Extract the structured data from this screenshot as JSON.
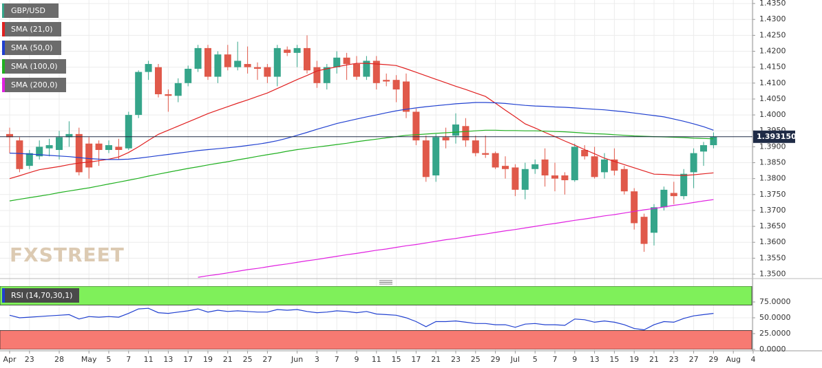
{
  "chart_data": {
    "type": "candlestick",
    "symbol": "GBP/USD",
    "watermark": "FXSTREET",
    "up_color": "#35a58a",
    "down_color": "#e0594a",
    "grid": true,
    "categories": [
      "Apr",
      null,
      "23",
      null,
      null,
      "28",
      null,
      null,
      "May",
      null,
      "5",
      null,
      "7",
      null,
      "11",
      null,
      "13",
      null,
      "17",
      null,
      "19",
      null,
      "21",
      null,
      "25",
      null,
      "27",
      null,
      null,
      "Jun",
      null,
      "3",
      null,
      "7",
      null,
      "9",
      null,
      "11",
      null,
      "15",
      null,
      "17",
      null,
      "21",
      null,
      "23",
      null,
      "25",
      null,
      "29",
      null,
      "Jul",
      null,
      "5",
      null,
      "7",
      null,
      "9",
      null,
      "13",
      null,
      "15",
      null,
      "19",
      null,
      "21",
      null,
      "23",
      null,
      "27",
      null,
      "29",
      null,
      "Aug",
      null,
      "4"
    ],
    "open": [
      1.394,
      1.392,
      1.384,
      1.387,
      1.3895,
      1.389,
      1.393,
      1.394,
      1.391,
      1.391,
      1.389,
      1.39,
      1.3895,
      1.4,
      1.4135,
      1.415,
      1.4065,
      1.406,
      1.41,
      1.4145,
      1.421,
      1.412,
      1.419,
      1.415,
      1.416,
      1.415,
      1.415,
      1.412,
      1.4205,
      1.4195,
      1.421,
      1.415,
      1.41,
      1.415,
      1.418,
      1.416,
      1.412,
      1.417,
      1.411,
      1.411,
      1.4105,
      1.401,
      1.392,
      1.381,
      1.393,
      1.3935,
      1.3965,
      1.392,
      1.388,
      1.388,
      1.384,
      1.3835,
      1.3765,
      1.383,
      1.386,
      1.381,
      1.381,
      1.3795,
      1.389,
      1.387,
      1.382,
      1.386,
      1.383,
      1.376,
      1.368,
      1.363,
      1.371,
      1.3755,
      1.3745,
      1.382,
      1.3885,
      1.3905,
      null,
      null,
      null,
      null
    ],
    "high": [
      1.396,
      1.393,
      1.389,
      1.392,
      1.3925,
      1.395,
      1.398,
      1.396,
      1.393,
      1.392,
      1.392,
      1.3925,
      1.401,
      1.414,
      1.417,
      1.416,
      1.408,
      1.4115,
      1.4155,
      1.422,
      1.422,
      1.42,
      1.422,
      1.423,
      1.4215,
      1.4165,
      1.416,
      1.422,
      1.4215,
      1.422,
      1.425,
      1.417,
      1.416,
      1.42,
      1.4195,
      1.4185,
      1.4185,
      1.4185,
      1.413,
      1.4125,
      1.413,
      1.402,
      1.3935,
      1.394,
      1.396,
      1.4005,
      1.399,
      1.3935,
      1.3935,
      1.3885,
      1.387,
      1.3845,
      1.385,
      1.386,
      1.3895,
      1.385,
      1.382,
      1.391,
      1.3905,
      1.39,
      1.388,
      1.3895,
      1.384,
      1.377,
      1.369,
      1.372,
      1.3775,
      1.379,
      1.383,
      1.3895,
      1.3915,
      1.3945,
      null,
      null,
      null,
      null
    ],
    "low": [
      1.388,
      1.382,
      1.383,
      1.386,
      1.387,
      1.386,
      1.39,
      1.381,
      1.38,
      1.384,
      1.388,
      1.386,
      1.389,
      1.399,
      1.411,
      1.4055,
      1.401,
      1.404,
      1.409,
      1.4135,
      1.411,
      1.41,
      1.414,
      1.414,
      1.413,
      1.411,
      1.41,
      1.409,
      1.4185,
      1.415,
      1.413,
      1.4085,
      1.408,
      1.413,
      1.411,
      1.411,
      1.411,
      1.408,
      1.409,
      1.404,
      1.399,
      1.3905,
      1.379,
      1.379,
      1.3895,
      1.391,
      1.39,
      1.387,
      1.3865,
      1.383,
      1.38,
      1.3745,
      1.3735,
      1.3815,
      1.3775,
      1.376,
      1.375,
      1.379,
      1.386,
      1.38,
      1.38,
      1.381,
      1.375,
      1.364,
      1.357,
      1.359,
      1.37,
      1.372,
      1.3735,
      1.377,
      1.384,
      1.3895,
      null,
      null,
      null,
      null
    ],
    "close": [
      1.393,
      1.383,
      1.388,
      1.39,
      1.3905,
      1.393,
      1.394,
      1.382,
      1.3835,
      1.389,
      1.3905,
      1.389,
      1.4,
      1.4135,
      1.416,
      1.4065,
      1.406,
      1.41,
      1.4145,
      1.421,
      1.412,
      1.419,
      1.415,
      1.417,
      1.415,
      1.4145,
      1.412,
      1.421,
      1.4195,
      1.421,
      1.414,
      1.41,
      1.415,
      1.418,
      1.416,
      1.412,
      1.417,
      1.41,
      1.4105,
      1.408,
      1.401,
      1.392,
      1.3805,
      1.393,
      1.392,
      1.397,
      1.392,
      1.388,
      1.3875,
      1.3835,
      1.383,
      1.3765,
      1.383,
      1.3845,
      1.381,
      1.38,
      1.3795,
      1.39,
      1.387,
      1.3805,
      1.386,
      1.3825,
      1.376,
      1.366,
      1.3595,
      1.371,
      1.3765,
      1.3745,
      1.3815,
      1.388,
      1.3905,
      1.3931,
      null,
      null,
      null,
      null
    ],
    "series": [
      {
        "name": "SMA (21,0)",
        "color": "#e02020",
        "values": [
          1.38,
          1.3809,
          1.3819,
          1.3828,
          1.3833,
          1.3838,
          1.3844,
          1.3849,
          1.3852,
          1.3856,
          1.3861,
          1.3868,
          1.3882,
          1.39,
          1.392,
          1.3939,
          1.3952,
          1.3965,
          1.3978,
          1.3991,
          1.4004,
          1.4015,
          1.4026,
          1.4037,
          1.4047,
          1.4058,
          1.4069,
          1.4083,
          1.4097,
          1.4111,
          1.4124,
          1.4138,
          1.4145,
          1.4151,
          1.4157,
          1.4162,
          1.4162,
          1.416,
          1.4158,
          1.4155,
          1.4145,
          1.4134,
          1.4123,
          1.4112,
          1.4101,
          1.409,
          1.408,
          1.4069,
          1.4058,
          1.4037,
          1.4015,
          1.3994,
          1.3972,
          1.3959,
          1.3945,
          1.3932,
          1.3918,
          1.3905,
          1.3891,
          1.3878,
          1.3864,
          1.3854,
          1.3844,
          1.3834,
          1.3824,
          1.3814,
          1.3813,
          1.3811,
          1.381,
          1.3812,
          1.3815,
          1.3818,
          null,
          null,
          null,
          null
        ]
      },
      {
        "name": "SMA (50,0)",
        "color": "#2040d0",
        "values": [
          1.388,
          1.3879,
          1.3877,
          1.3875,
          1.3873,
          1.3871,
          1.3869,
          1.3866,
          1.3863,
          1.3861,
          1.386,
          1.386,
          1.3861,
          1.3864,
          1.3868,
          1.3872,
          1.3876,
          1.388,
          1.3884,
          1.3888,
          1.3891,
          1.3894,
          1.3897,
          1.39,
          1.3904,
          1.3908,
          1.3913,
          1.3919,
          1.3927,
          1.3936,
          1.3945,
          1.3955,
          1.3964,
          1.3973,
          1.398,
          1.3987,
          1.3994,
          1.4,
          1.4007,
          1.4013,
          1.4018,
          1.4022,
          1.4026,
          1.4029,
          1.4032,
          1.4035,
          1.4037,
          1.4039,
          1.4039,
          1.4038,
          1.4036,
          1.4033,
          1.403,
          1.4028,
          1.4027,
          1.4025,
          1.4024,
          1.4022,
          1.402,
          1.4018,
          1.4016,
          1.4013,
          1.401,
          1.4006,
          1.4002,
          1.3998,
          1.3994,
          1.3987,
          1.398,
          1.3972,
          1.3963,
          1.3952,
          null,
          null,
          null,
          null
        ]
      },
      {
        "name": "SMA (100,0)",
        "color": "#20b020",
        "values": [
          1.373,
          1.3735,
          1.374,
          1.3745,
          1.375,
          1.3756,
          1.3761,
          1.3766,
          1.3771,
          1.3777,
          1.3783,
          1.3789,
          1.3795,
          1.3801,
          1.3808,
          1.3814,
          1.382,
          1.3826,
          1.3832,
          1.3837,
          1.3843,
          1.3848,
          1.3853,
          1.3859,
          1.3864,
          1.387,
          1.3875,
          1.388,
          1.3886,
          1.3891,
          1.3895,
          1.3899,
          1.3903,
          1.3907,
          1.3911,
          1.3916,
          1.392,
          1.3924,
          1.3928,
          1.3932,
          1.3936,
          1.3938,
          1.394,
          1.3942,
          1.3944,
          1.3946,
          1.3948,
          1.395,
          1.3952,
          1.3952,
          1.3951,
          1.3951,
          1.395,
          1.395,
          1.3949,
          1.3948,
          1.3947,
          1.3945,
          1.3943,
          1.3941,
          1.394,
          1.3938,
          1.3936,
          1.3934,
          1.3933,
          1.3932,
          1.3931,
          1.393,
          1.3929,
          1.3927,
          1.3926,
          1.3925,
          null,
          null,
          null,
          null
        ]
      },
      {
        "name": "SMA (200,0)",
        "color": "#e020e0",
        "values": [
          null,
          null,
          null,
          null,
          null,
          null,
          null,
          null,
          null,
          null,
          null,
          null,
          null,
          null,
          null,
          null,
          null,
          null,
          null,
          1.349,
          1.3495,
          1.3499,
          1.3504,
          1.3509,
          1.3514,
          1.3518,
          1.3523,
          1.3528,
          1.3532,
          1.3537,
          1.3542,
          1.3546,
          1.3551,
          1.3556,
          1.3561,
          1.3565,
          1.357,
          1.3575,
          1.3579,
          1.3584,
          1.3589,
          1.3593,
          1.3598,
          1.3603,
          1.3608,
          1.3612,
          1.3617,
          1.3622,
          1.3626,
          1.3631,
          1.3636,
          1.364,
          1.3645,
          1.365,
          1.3655,
          1.3659,
          1.3664,
          1.3669,
          1.3673,
          1.3678,
          1.3683,
          1.3687,
          1.3692,
          1.3697,
          1.3702,
          1.3706,
          1.3711,
          1.3716,
          1.372,
          1.3725,
          1.373,
          1.3734,
          null,
          null,
          null,
          null
        ]
      }
    ],
    "ylim": [
      1.3486,
      1.4361
    ],
    "yticks": [
      {
        "value": 1.35,
        "label": "1.3500"
      },
      {
        "value": 1.355,
        "label": "1.3550"
      },
      {
        "value": 1.36,
        "label": "1.3600"
      },
      {
        "value": 1.365,
        "label": "1.3650"
      },
      {
        "value": 1.37,
        "label": "1.3700"
      },
      {
        "value": 1.375,
        "label": "1.3750"
      },
      {
        "value": 1.38,
        "label": "1.3800"
      },
      {
        "value": 1.385,
        "label": "1.3850"
      },
      {
        "value": 1.39,
        "label": "1.3900"
      },
      {
        "value": 1.395,
        "label": "1.3950"
      },
      {
        "value": 1.4,
        "label": "1.4000"
      },
      {
        "value": 1.405,
        "label": "1.4050"
      },
      {
        "value": 1.41,
        "label": "1.4100"
      },
      {
        "value": 1.415,
        "label": "1.4150"
      },
      {
        "value": 1.42,
        "label": "1.4200"
      },
      {
        "value": 1.425,
        "label": "1.4250"
      },
      {
        "value": 1.43,
        "label": "1.4300"
      },
      {
        "value": 1.435,
        "label": "1.4350"
      }
    ],
    "last_price": {
      "value": 1.39315,
      "label": "1.393150",
      "color": "#1f2b46"
    },
    "rsi": {
      "name": "RSI (14,70,30,1)",
      "color": "#2040d0",
      "values": [
        54,
        50,
        51,
        52,
        53,
        54,
        55,
        48,
        52,
        51,
        52,
        51,
        57,
        64,
        65,
        58,
        57,
        59,
        61,
        64,
        59,
        62,
        60,
        61,
        60,
        59,
        59,
        63,
        62,
        63,
        60,
        58,
        59,
        61,
        60,
        58,
        60,
        56,
        55,
        54,
        50,
        44,
        36,
        44,
        44,
        45,
        43,
        41,
        41,
        39,
        39,
        35,
        40,
        41,
        39,
        39,
        38,
        48,
        47,
        43,
        45,
        43,
        39,
        33,
        31,
        39,
        44,
        43,
        49,
        53,
        55,
        57,
        null,
        null,
        null,
        null
      ],
      "bands": [
        {
          "from": 70,
          "to": 100,
          "color": "#7ff05a"
        },
        {
          "from": 0,
          "to": 30,
          "color": "#f77a72"
        }
      ],
      "ylim": [
        0,
        100
      ],
      "yticks": [
        {
          "value": 0,
          "label": "0.0000"
        },
        {
          "value": 25,
          "label": "25.0000"
        },
        {
          "value": 50,
          "label": "50.0000"
        },
        {
          "value": 75,
          "label": "75.0000"
        }
      ]
    }
  }
}
